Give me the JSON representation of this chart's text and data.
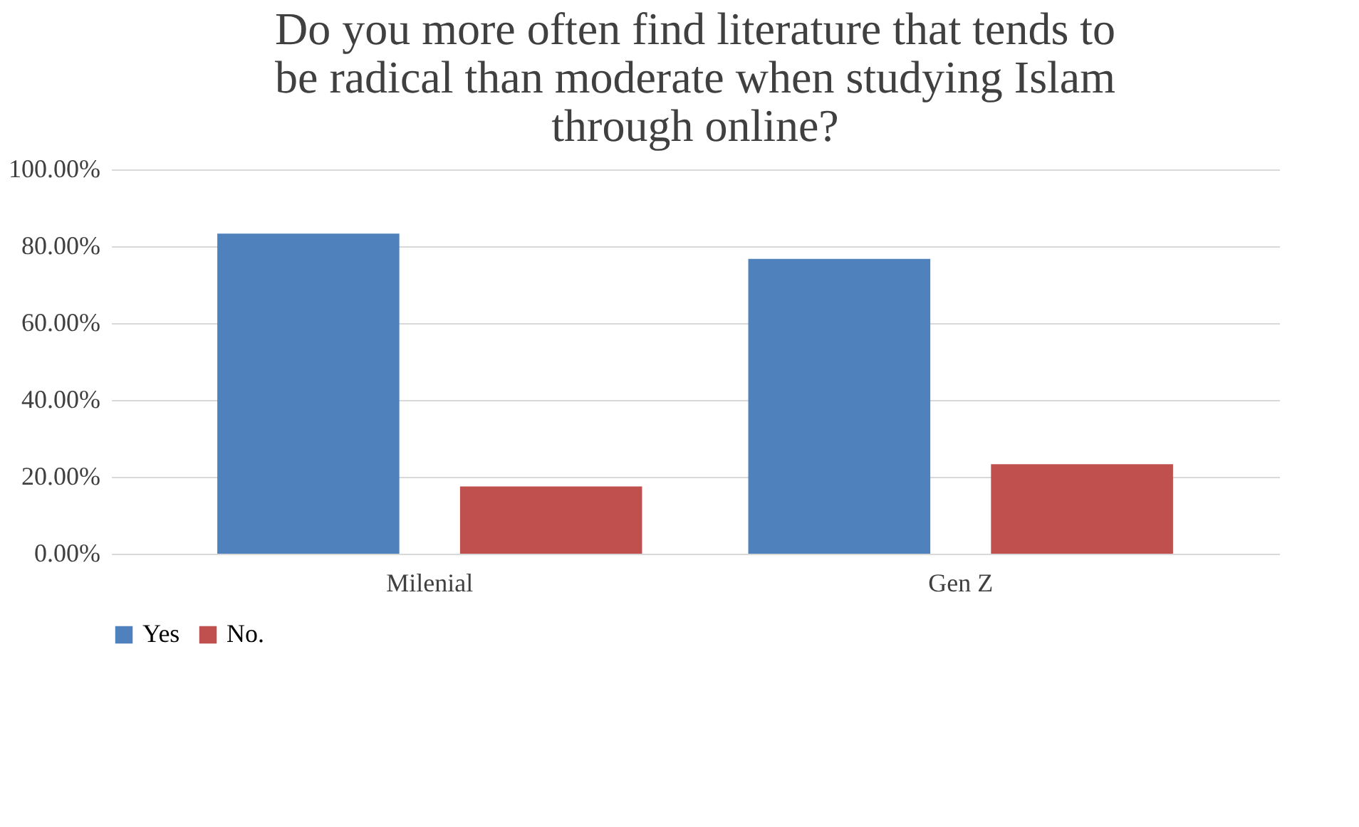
{
  "chart_data": {
    "type": "bar",
    "title": [
      "Do you more often find literature that tends to",
      "be radical than moderate when studying Islam",
      "through online?"
    ],
    "categories": [
      "Milenial",
      "Gen Z"
    ],
    "series": [
      {
        "name": "Yes",
        "color": "#4f81bd",
        "values": [
          83.3,
          76.7
        ]
      },
      {
        "name": "No.",
        "color": "#c0504d",
        "values": [
          17.5,
          23.3
        ]
      }
    ],
    "ylim": [
      0,
      100
    ],
    "yticks": [
      {
        "value": 0,
        "label": "0.00%"
      },
      {
        "value": 20,
        "label": "20.00%"
      },
      {
        "value": 40,
        "label": "40.00%"
      },
      {
        "value": 60,
        "label": "60.00%"
      },
      {
        "value": 80,
        "label": "80.00%"
      },
      {
        "value": 100,
        "label": "100.00%"
      }
    ],
    "grid": "y",
    "legend": "bottom"
  }
}
